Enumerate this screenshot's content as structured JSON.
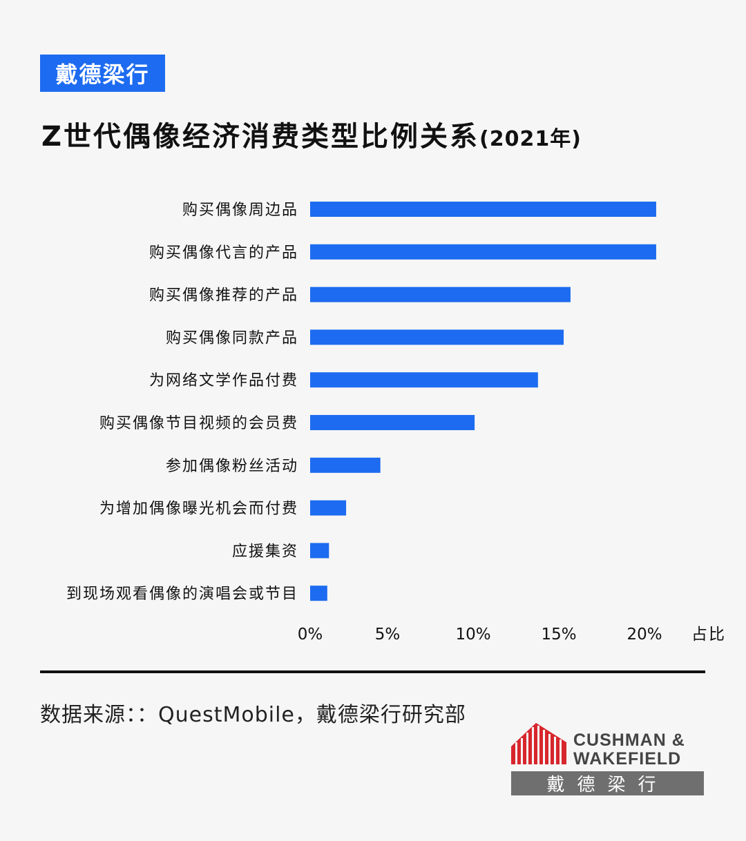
{
  "brand_tag": "戴德梁行",
  "title": "Z世代偶像经济消费类型比例关系",
  "title_year": "(2021年)",
  "source_text": "数据来源：：QuestMobile，戴德梁行研究部",
  "logo": {
    "line1": "CUSHMAN &",
    "line2": "WAKEFIELD",
    "cn": "戴德梁行"
  },
  "colors": {
    "bar": "#1d6bf0",
    "brand": "#1d6bf0",
    "logo_red": "#d7262c",
    "logo_gray": "#6f6f6f"
  },
  "chart_data": {
    "type": "bar",
    "orientation": "horizontal",
    "title": "Z世代偶像经济消费类型比例关系(2021年)",
    "xlabel": "占比",
    "ylabel": "",
    "xlim": [
      0,
      20
    ],
    "x_ticks": [
      "0%",
      "5%",
      "10%",
      "15%",
      "20%"
    ],
    "grid": false,
    "categories": [
      "购买偶像周边品",
      "购买偶像代言的产品",
      "购买偶像推荐的产品",
      "购买偶像同款产品",
      "为网络文学作品付费",
      "购买偶像节目视频的会员费",
      "参加偶像粉丝活动",
      "为增加偶像曝光机会而付费",
      "应援集资",
      "到现场观看偶像的演唱会或节目"
    ],
    "values": [
      20.2,
      20.2,
      15.2,
      14.8,
      13.3,
      9.6,
      4.1,
      2.1,
      1.1,
      1.0
    ]
  }
}
